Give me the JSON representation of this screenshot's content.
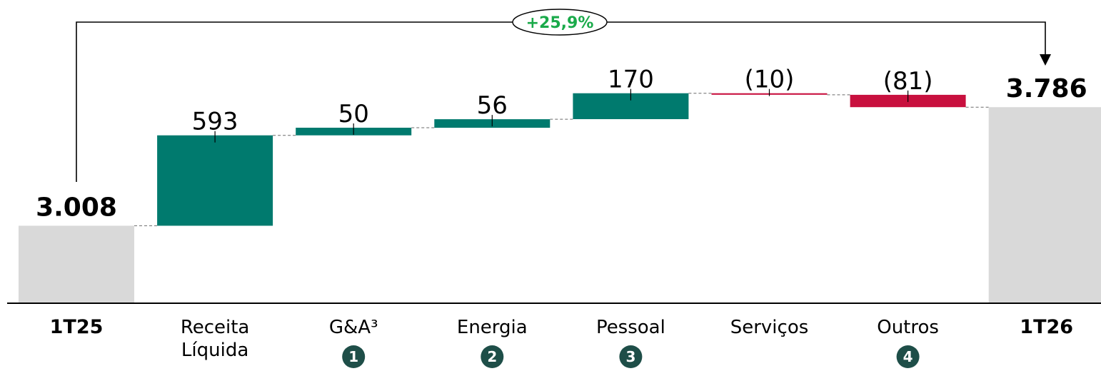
{
  "chart_data": {
    "type": "bar",
    "subtype": "waterfall",
    "categories": [
      "1T25",
      "Receita Líquida",
      "G&A³",
      "Energia",
      "Pessoal",
      "Serviços",
      "Outros",
      "1T26"
    ],
    "category_lines": [
      [
        "1T25"
      ],
      [
        "Receita",
        "Líquida"
      ],
      [
        "G&A³"
      ],
      [
        "Energia"
      ],
      [
        "Pessoal"
      ],
      [
        "Serviços"
      ],
      [
        "Outros"
      ],
      [
        "1T26"
      ]
    ],
    "values": [
      3008,
      593,
      50,
      56,
      170,
      -10,
      -81,
      3786
    ],
    "value_labels": [
      "3.008",
      "593",
      "50",
      "56",
      "170",
      "(10)",
      "(81)",
      "3.786"
    ],
    "bar_kinds": [
      "total",
      "increase",
      "increase",
      "increase",
      "increase",
      "decrease",
      "decrease",
      "total"
    ],
    "badges": [
      "",
      "",
      "1",
      "2",
      "3",
      "",
      "4",
      ""
    ],
    "growth_label": "+25,9%",
    "colors": {
      "total": "#d9d9d9",
      "increase": "#007a6e",
      "decrease": "#c8103e",
      "growth": "#1aaa4a",
      "badge": "#1e4e48"
    }
  }
}
